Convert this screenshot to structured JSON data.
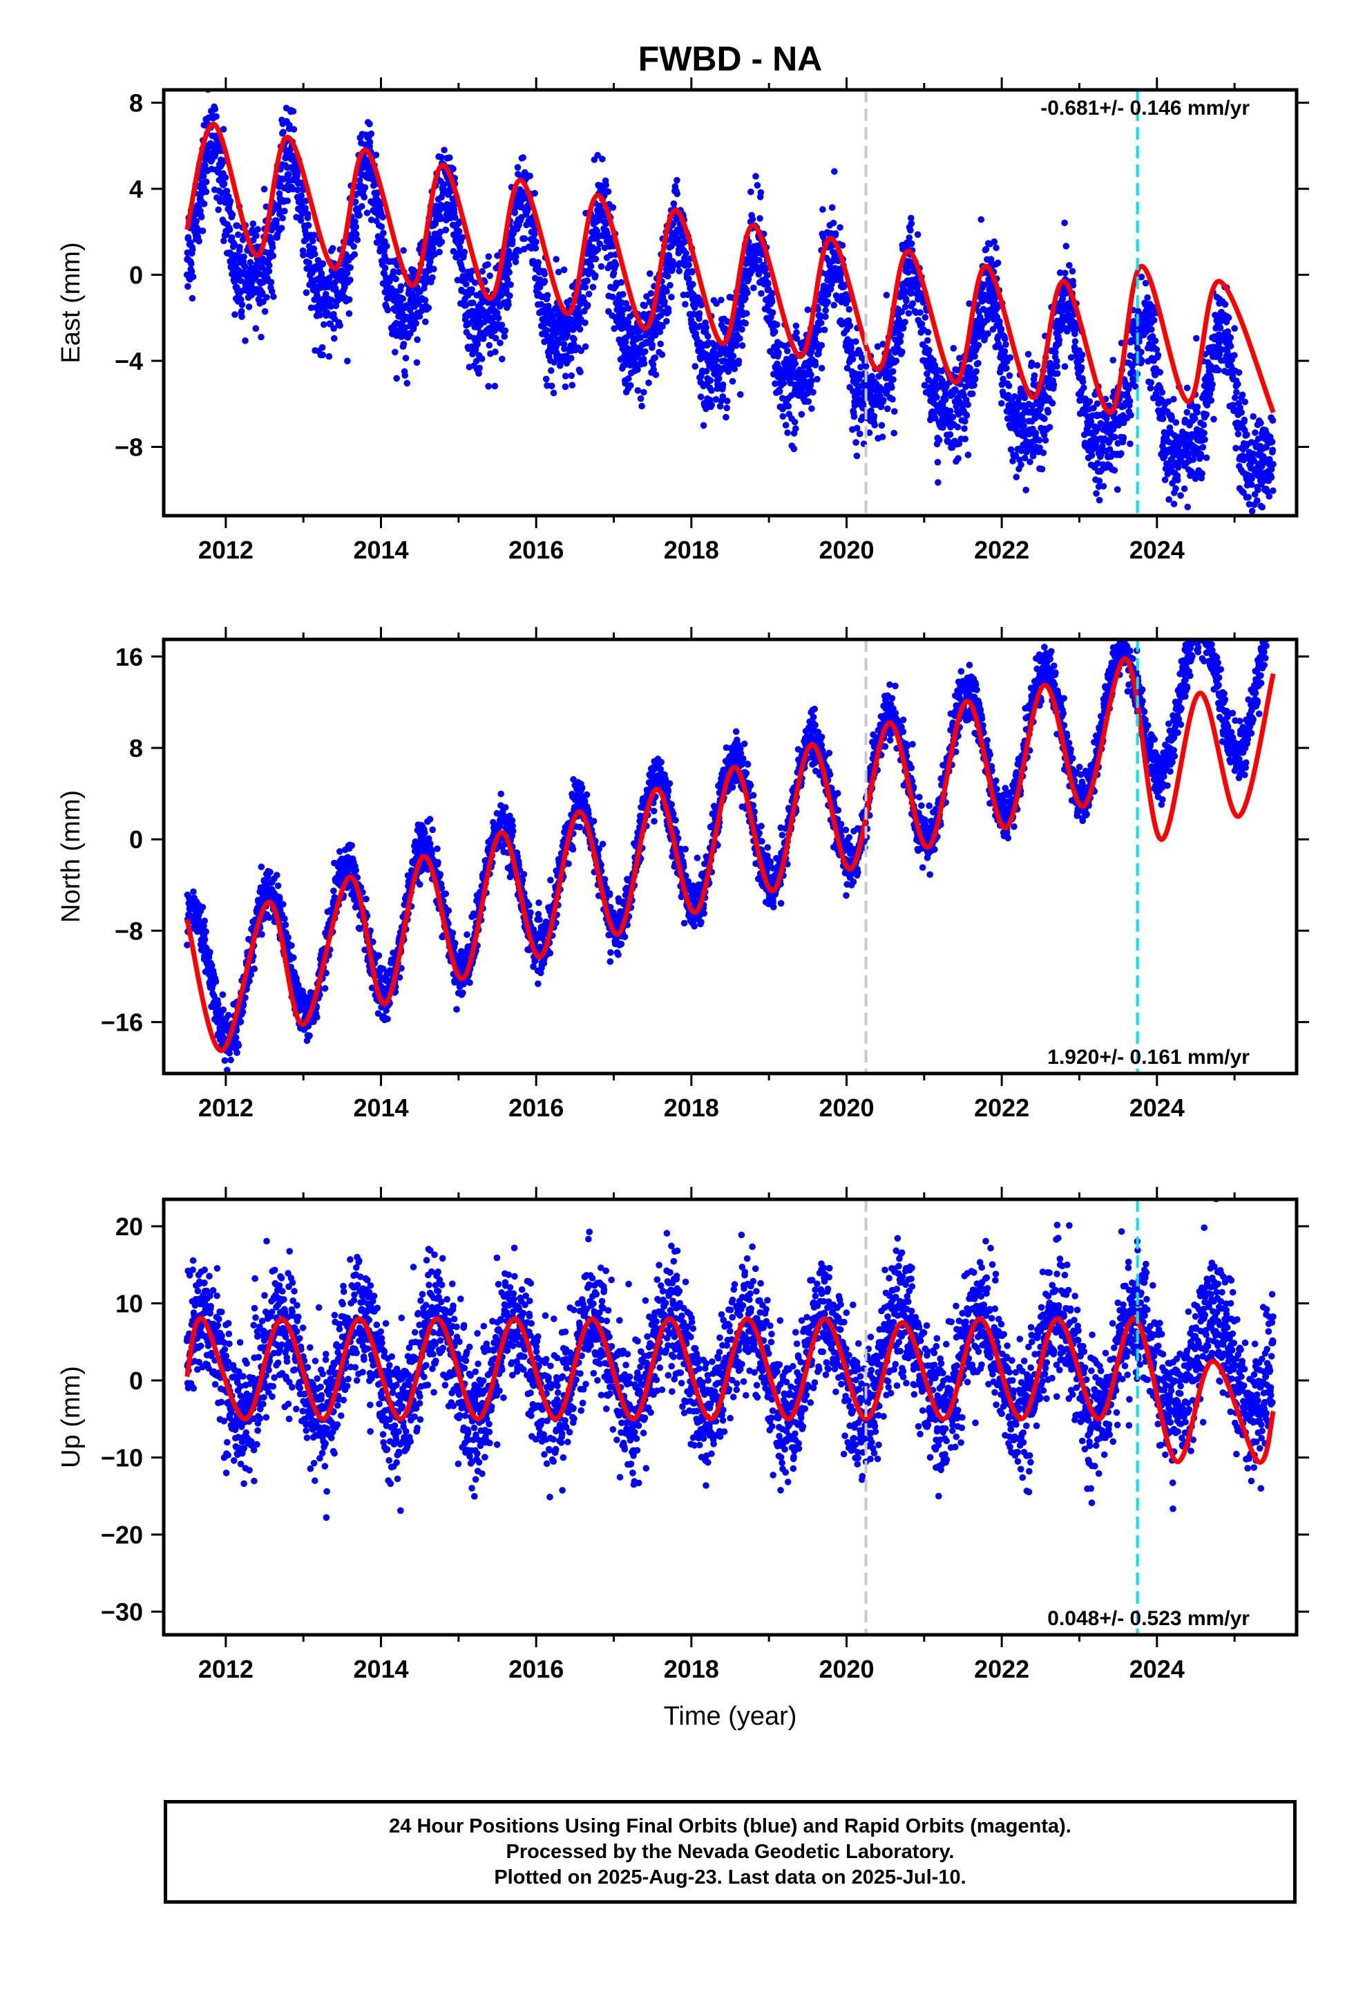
{
  "chart_data": [
    {
      "type": "scatter",
      "title": "FWBD - NA",
      "ylabel": "East (mm)",
      "xlabel": "",
      "xlim": [
        2011.2,
        2025.8
      ],
      "ylim": [
        -11.2,
        8.6
      ],
      "yticks": [
        -8,
        -4,
        0,
        4,
        8
      ],
      "ytick_labels": [
        "−8",
        "−4",
        "0",
        "4",
        "8"
      ],
      "xticks": [
        2012,
        2014,
        2016,
        2018,
        2020,
        2022,
        2024
      ],
      "xtick_labels": [
        "2012",
        "2014",
        "2016",
        "2018",
        "2020",
        "2022",
        "2024"
      ],
      "rate_label": "-0.681+/- 0.146 mm/yr",
      "model": {
        "start": 2011.5,
        "end": 2025.5,
        "offset": 2.7,
        "trend": -0.681,
        "annual_amp": 3.0,
        "annual_peak": 0.82,
        "semiannual_amp": 0.9,
        "semiannual_peak": 0.35,
        "noise": 1.1
      },
      "model_curve": [
        [
          2011.5,
          2.1
        ],
        [
          2011.85,
          7.0
        ],
        [
          2012.4,
          0.9
        ],
        [
          2012.8,
          6.4
        ],
        [
          2013.4,
          0.3
        ],
        [
          2013.8,
          5.8
        ],
        [
          2014.4,
          -0.5
        ],
        [
          2014.8,
          5.1
        ],
        [
          2015.4,
          -1.1
        ],
        [
          2015.8,
          4.4
        ],
        [
          2016.4,
          -1.8
        ],
        [
          2016.8,
          3.7
        ],
        [
          2017.4,
          -2.5
        ],
        [
          2017.8,
          3.0
        ],
        [
          2018.4,
          -3.2
        ],
        [
          2018.8,
          2.3
        ],
        [
          2019.4,
          -3.8
        ],
        [
          2019.8,
          1.7
        ],
        [
          2020.4,
          -4.4
        ],
        [
          2020.8,
          1.1
        ],
        [
          2021.4,
          -5.0
        ],
        [
          2021.8,
          0.4
        ],
        [
          2022.4,
          -5.7
        ],
        [
          2022.8,
          -0.3
        ],
        [
          2023.4,
          -6.4
        ],
        [
          2023.8,
          0.4
        ],
        [
          2024.4,
          -5.9
        ],
        [
          2024.8,
          -0.3
        ],
        [
          2025.5,
          -6.4
        ]
      ]
    },
    {
      "type": "scatter",
      "title": "",
      "ylabel": "North (mm)",
      "xlabel": "",
      "xlim": [
        2011.2,
        2025.8
      ],
      "ylim": [
        -20.5,
        17.5
      ],
      "yticks": [
        -16,
        -8,
        0,
        8,
        16
      ],
      "ytick_labels": [
        "−16",
        "−8",
        "0",
        "8",
        "16"
      ],
      "xticks": [
        2012,
        2014,
        2016,
        2018,
        2020,
        2022,
        2024
      ],
      "xtick_labels": [
        "2012",
        "2014",
        "2016",
        "2018",
        "2020",
        "2022",
        "2024"
      ],
      "rate_label": "1.920+/- 0.161 mm/yr",
      "model": {
        "start": 2011.5,
        "end": 2025.5,
        "offset": -12.5,
        "trend": 1.92,
        "annual_amp": 6.0,
        "annual_peak": 0.55,
        "semiannual_amp": 0.0,
        "semiannual_peak": 0.0,
        "noise": 1.1
      },
      "model_curve": [
        [
          2011.5,
          -7.0
        ],
        [
          2011.95,
          -18.5
        ],
        [
          2012.55,
          -5.5
        ],
        [
          2013.0,
          -16.2
        ],
        [
          2013.6,
          -3.3
        ],
        [
          2014.05,
          -14.4
        ],
        [
          2014.55,
          -1.5
        ],
        [
          2015.05,
          -12.2
        ],
        [
          2015.55,
          0.6
        ],
        [
          2016.05,
          -10.3
        ],
        [
          2016.55,
          2.4
        ],
        [
          2017.05,
          -8.3
        ],
        [
          2017.55,
          4.4
        ],
        [
          2018.05,
          -6.4
        ],
        [
          2018.55,
          6.3
        ],
        [
          2019.05,
          -4.5
        ],
        [
          2019.55,
          8.3
        ],
        [
          2020.05,
          -2.6
        ],
        [
          2020.55,
          10.2
        ],
        [
          2021.05,
          -0.7
        ],
        [
          2021.55,
          12.1
        ],
        [
          2022.05,
          1.0
        ],
        [
          2022.55,
          13.5
        ],
        [
          2023.05,
          2.9
        ],
        [
          2023.6,
          15.8
        ],
        [
          2024.05,
          0.0
        ],
        [
          2024.55,
          12.8
        ],
        [
          2025.05,
          2.0
        ],
        [
          2025.5,
          14.5
        ]
      ]
    },
    {
      "type": "scatter",
      "title": "",
      "ylabel": "Up (mm)",
      "xlabel": "Time (year)",
      "xlim": [
        2011.2,
        2025.8
      ],
      "ylim": [
        -33,
        23.5
      ],
      "yticks": [
        -30,
        -20,
        -10,
        0,
        10,
        20
      ],
      "ytick_labels": [
        "−30",
        "−20",
        "−10",
        "0",
        "10",
        "20"
      ],
      "xticks": [
        2012,
        2014,
        2016,
        2018,
        2020,
        2022,
        2024
      ],
      "xtick_labels": [
        "2012",
        "2014",
        "2016",
        "2018",
        "2020",
        "2022",
        "2024"
      ],
      "rate_label": "0.048+/- 0.523 mm/yr",
      "model": {
        "start": 2011.5,
        "end": 2025.5,
        "offset": 1.5,
        "trend": 0.048,
        "annual_amp": 6.5,
        "annual_peak": 0.72,
        "semiannual_amp": 0.0,
        "semiannual_peak": 0.0,
        "noise": 4.0
      },
      "model_curve": [
        [
          2011.5,
          0.5
        ],
        [
          2011.7,
          8.0
        ],
        [
          2012.25,
          -5.0
        ],
        [
          2012.72,
          8.0
        ],
        [
          2013.25,
          -5.0
        ],
        [
          2013.72,
          8.0
        ],
        [
          2014.25,
          -5.0
        ],
        [
          2014.72,
          8.0
        ],
        [
          2015.25,
          -5.0
        ],
        [
          2015.72,
          8.0
        ],
        [
          2016.25,
          -5.0
        ],
        [
          2016.72,
          8.0
        ],
        [
          2017.25,
          -5.0
        ],
        [
          2017.72,
          8.0
        ],
        [
          2018.25,
          -5.0
        ],
        [
          2018.72,
          8.0
        ],
        [
          2019.25,
          -5.0
        ],
        [
          2019.72,
          8.0
        ],
        [
          2020.25,
          -5.0
        ],
        [
          2020.72,
          7.5
        ],
        [
          2021.25,
          -5.0
        ],
        [
          2021.72,
          8.0
        ],
        [
          2022.25,
          -5.0
        ],
        [
          2022.72,
          8.0
        ],
        [
          2023.25,
          -5.0
        ],
        [
          2023.72,
          8.0
        ],
        [
          2024.25,
          -10.5
        ],
        [
          2024.72,
          2.5
        ],
        [
          2025.3,
          -10.5
        ],
        [
          2025.5,
          -4.0
        ]
      ]
    }
  ],
  "reference_lines": [
    {
      "year": 2020.25,
      "color": "#c8c8c8"
    },
    {
      "year": 2023.75,
      "color": "#00e5ee"
    }
  ],
  "colors": {
    "points": "#0000ff",
    "model": "#ff0000",
    "frame": "#000000"
  },
  "footer": {
    "line1": "24 Hour Positions Using Final Orbits (blue) and Rapid Orbits (magenta).",
    "line2": "Processed by the Nevada Geodetic Laboratory.",
    "line3": "Plotted on 2025-Aug-23. Last data on 2025-Jul-10."
  }
}
